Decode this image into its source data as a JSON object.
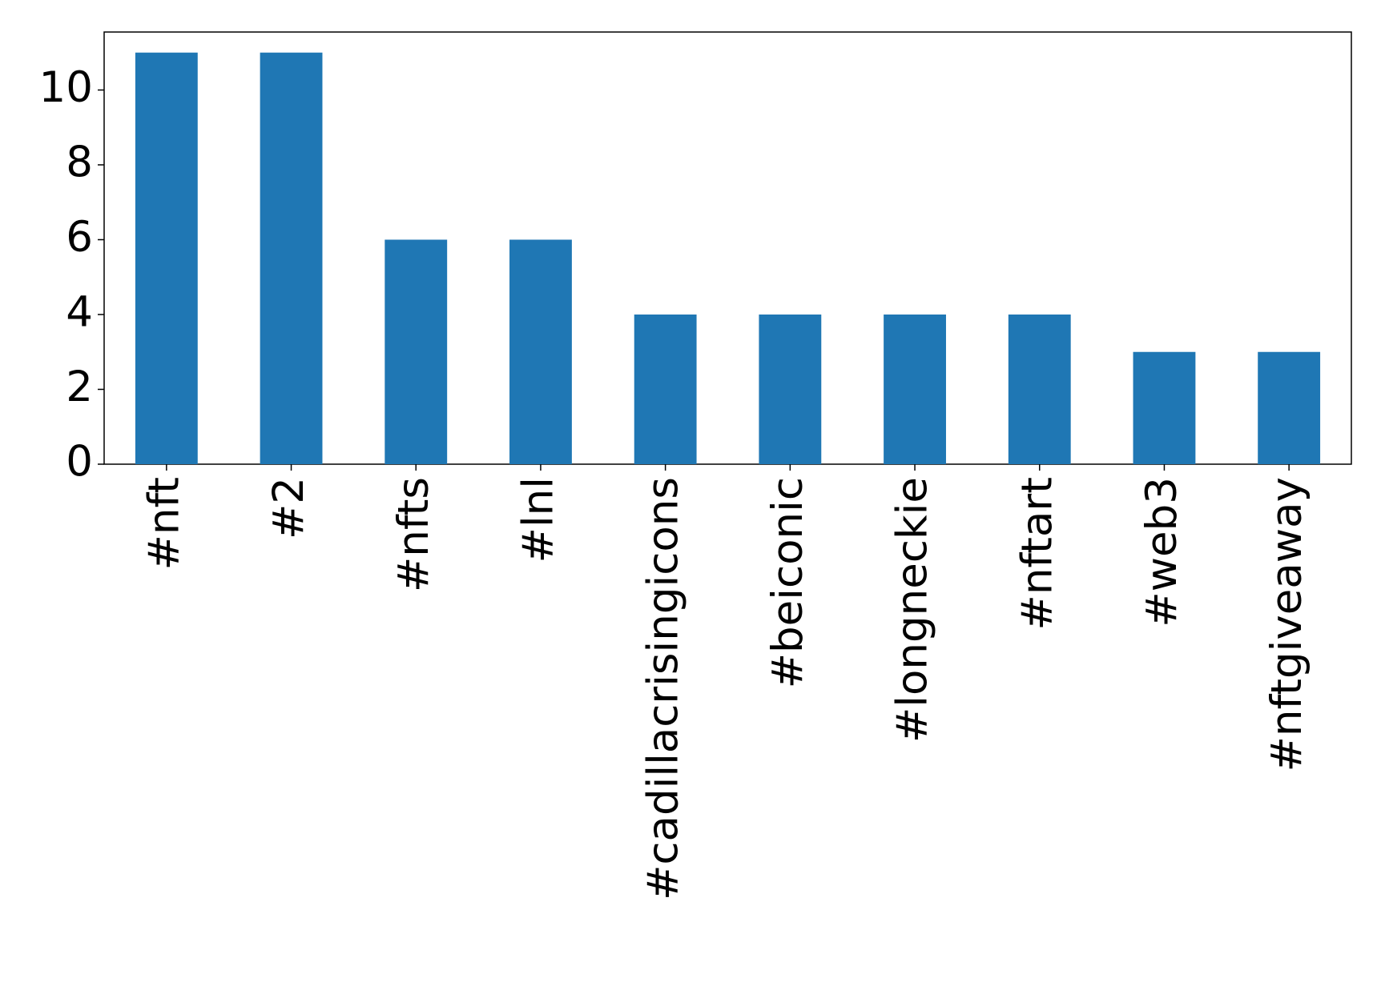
{
  "chart_data": {
    "type": "bar",
    "categories": [
      "#nft",
      "#2",
      "#nfts",
      "#lnl",
      "#cadillacrisingicons",
      "#beiconic",
      "#longneckie",
      "#nftart",
      "#web3",
      "#nftgiveaway"
    ],
    "values": [
      11,
      11,
      6,
      6,
      4,
      4,
      4,
      4,
      3,
      3
    ],
    "color": "#1f77b4",
    "ylim": [
      0,
      11.55
    ],
    "yticks": [
      0,
      2,
      4,
      6,
      8,
      10
    ],
    "grid": false
  }
}
